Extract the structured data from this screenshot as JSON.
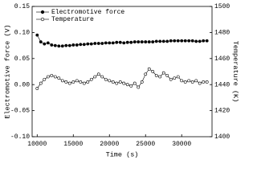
{
  "chart_data": {
    "type": "line",
    "xlabel": "Time (s)",
    "ylabel": "Electromotive force (V)",
    "y2label": "Temperature (K)",
    "x": [
      10000,
      10500,
      11000,
      11500,
      12000,
      12500,
      13000,
      13500,
      14000,
      14500,
      15000,
      15500,
      16000,
      16500,
      17000,
      17500,
      18000,
      18500,
      19000,
      19500,
      20000,
      20500,
      21000,
      21500,
      22000,
      22500,
      23000,
      23500,
      24000,
      24500,
      25000,
      25500,
      26000,
      26500,
      27000,
      27500,
      28000,
      28500,
      29000,
      29500,
      30000,
      30500,
      31000,
      31500,
      32000,
      32500,
      33000,
      33500
    ],
    "series": [
      {
        "name": "Electromotive force",
        "color": "#000000",
        "marker": "filled",
        "values": [
          0.095,
          0.082,
          0.078,
          0.08,
          0.076,
          0.075,
          0.074,
          0.074,
          0.075,
          0.075,
          0.076,
          0.076,
          0.077,
          0.077,
          0.078,
          0.078,
          0.079,
          0.079,
          0.079,
          0.08,
          0.08,
          0.08,
          0.081,
          0.081,
          0.08,
          0.081,
          0.081,
          0.082,
          0.082,
          0.082,
          0.082,
          0.082,
          0.082,
          0.083,
          0.083,
          0.083,
          0.083,
          0.084,
          0.084,
          0.084,
          0.084,
          0.084,
          0.084,
          0.084,
          0.083,
          0.083,
          0.084,
          0.084
        ]
      },
      {
        "name": "Temperature",
        "color": "#000000",
        "marker": "open",
        "axis": "y2",
        "values": [
          1437,
          1441,
          1444,
          1446,
          1447,
          1446,
          1445,
          1443,
          1442,
          1441,
          1442,
          1443,
          1442,
          1441,
          1442,
          1444,
          1446,
          1448,
          1446,
          1444,
          1443,
          1442,
          1441,
          1442,
          1441,
          1440,
          1439,
          1441,
          1438,
          1442,
          1448,
          1452,
          1450,
          1447,
          1446,
          1449,
          1447,
          1444,
          1445,
          1446,
          1443,
          1442,
          1443,
          1442,
          1443,
          1441,
          1442,
          1442
        ]
      }
    ],
    "xlim": [
      9300,
      34200
    ],
    "xticks": [
      10000,
      15000,
      20000,
      25000,
      30000
    ],
    "ylim": [
      -0.1,
      0.15
    ],
    "yticks": [
      {
        "value": -0.1,
        "label": "-0.10"
      },
      {
        "value": -0.05,
        "label": "-0.05"
      },
      {
        "value": 0,
        "label": "0.00"
      },
      {
        "value": 0.05,
        "label": "0.05"
      },
      {
        "value": 0.1,
        "label": "0.10"
      },
      {
        "value": 0.15,
        "label": "0.15"
      }
    ],
    "y2lim": [
      1400,
      1500
    ],
    "y2ticks": [
      1400,
      1420,
      1440,
      1460,
      1480,
      1500
    ],
    "legend": "upper left"
  }
}
